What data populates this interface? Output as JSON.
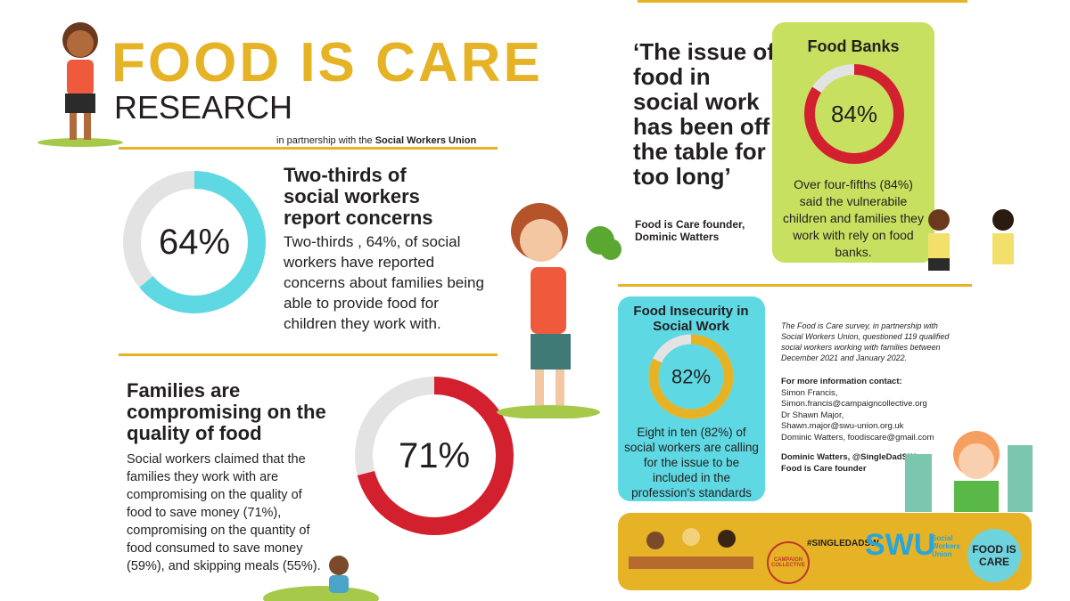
{
  "header": {
    "title": "FOOD IS CARE",
    "subtitle": "RESEARCH",
    "partnership": "in partnership with the",
    "partner": "Social Workers Union"
  },
  "sections": [
    {
      "heading": "Two-thirds of social workers report concerns",
      "body": "Two-thirds , 64%, of social workers have reported concerns about families being able to provide food for children they work with.",
      "stat": {
        "value": 64,
        "label": "64%"
      },
      "color": "#5ed8e2"
    },
    {
      "heading": "Families are compromising on the quality of food",
      "body": "Social workers claimed that the families they work with are compromising on the quality of food to save money (71%), compromising on the quantity of food consumed to save money (59%), and skipping meals (55%).",
      "stat": {
        "value": 71,
        "label": "71%"
      },
      "color": "#d3202e"
    },
    {
      "heading": "Food Banks",
      "body": "Over four-fifths (84%) said the vulnerabile children and families they work with rely on food banks.",
      "stat": {
        "value": 84,
        "label": "84%"
      },
      "color": "#d3202e"
    },
    {
      "heading": "Food Insecurity in Social Work",
      "body": "Eight in ten (82%) of social workers are calling for the issue to be included in the profession's standards",
      "stat": {
        "value": 82,
        "label": "82%"
      },
      "color": "#e5b325"
    }
  ],
  "quote": {
    "text": "‘The issue of food in social work has been off the table for too long’",
    "attribution": "Food is Care founder, Dominic Watters"
  },
  "survey": {
    "note": "The Food is Care survey, in partnership with Social Workers Union, questioned 119 qualified social workers working with families between December 2021 and January 2022.",
    "contact_heading": "For more information contact:",
    "contacts": [
      "Simon Francis,",
      "Simon.francis@campaigncollective.org",
      "Dr Shawn Major,",
      "Shawn.major@swu-union.org.uk",
      "Dominic Watters, foodiscare@gmail.com"
    ],
    "signoff": [
      "Dominic Watters, @SingleDadSW",
      "Food is Care founder"
    ]
  },
  "footer": {
    "logos": [
      "CAMPAIGN COLLECTIVE",
      "#SINGLEDADSW",
      "SWU",
      "Social Workers Union",
      "FOOD IS CARE"
    ]
  }
}
